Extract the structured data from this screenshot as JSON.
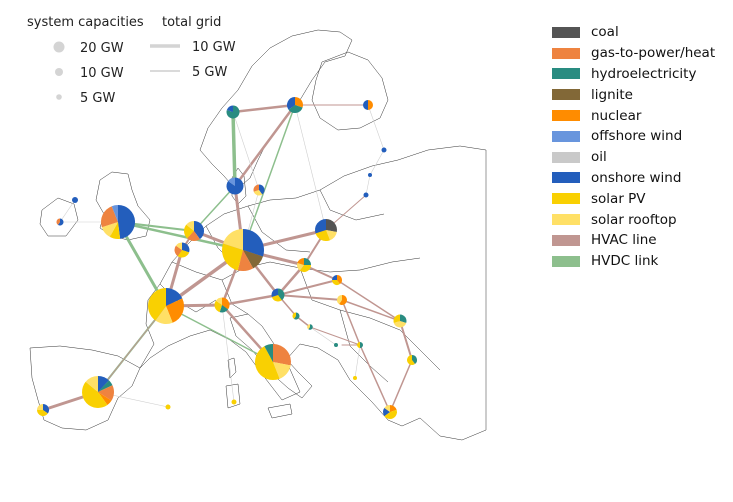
{
  "chart_data": {
    "type": "map",
    "size_legend": {
      "capacity_title": "system capacities",
      "capacity_items": [
        "20 GW",
        "10 GW",
        "5 GW"
      ],
      "grid_title": "total grid",
      "grid_items": [
        "10 GW",
        "5 GW"
      ]
    },
    "technologies": [
      {
        "name": "coal",
        "color": "#545454"
      },
      {
        "name": "gas-to-power/heat",
        "color": "#ee8340"
      },
      {
        "name": "hydroelectricity",
        "color": "#298c81"
      },
      {
        "name": "lignite",
        "color": "#826837"
      },
      {
        "name": "nuclear",
        "color": "#ff8c00"
      },
      {
        "name": "offshore wind",
        "color": "#6895dd"
      },
      {
        "name": "oil",
        "color": "#c9c9c9"
      },
      {
        "name": "onshore wind",
        "color": "#235ebc"
      },
      {
        "name": "solar PV",
        "color": "#f9d002"
      },
      {
        "name": "solar rooftop",
        "color": "#ffe066"
      },
      {
        "name": "HVAC line",
        "color": "#c09691"
      },
      {
        "name": "HVDC link",
        "color": "#8dbf8d"
      }
    ]
  }
}
